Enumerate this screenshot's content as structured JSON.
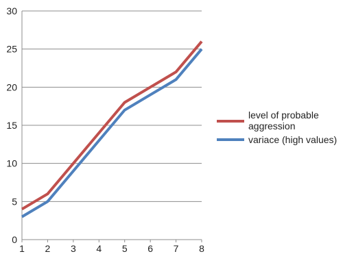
{
  "chart_data": {
    "type": "line",
    "title": "",
    "xlabel": "",
    "ylabel": "",
    "x": [
      1,
      2,
      3,
      4,
      5,
      6,
      7,
      8
    ],
    "xlim": [
      1,
      8
    ],
    "ylim": [
      0,
      30
    ],
    "yticks": [
      0,
      5,
      10,
      15,
      20,
      25,
      30
    ],
    "grid": true,
    "legend_position": "right",
    "series": [
      {
        "name": "level of probable aggression",
        "color": "#c0504d",
        "values": [
          4,
          6,
          10,
          14,
          18,
          20,
          22,
          26
        ]
      },
      {
        "name": "variace (high values)",
        "color": "#4f81bd",
        "values": [
          3,
          5,
          9,
          13,
          17,
          19,
          21,
          25
        ]
      }
    ]
  }
}
